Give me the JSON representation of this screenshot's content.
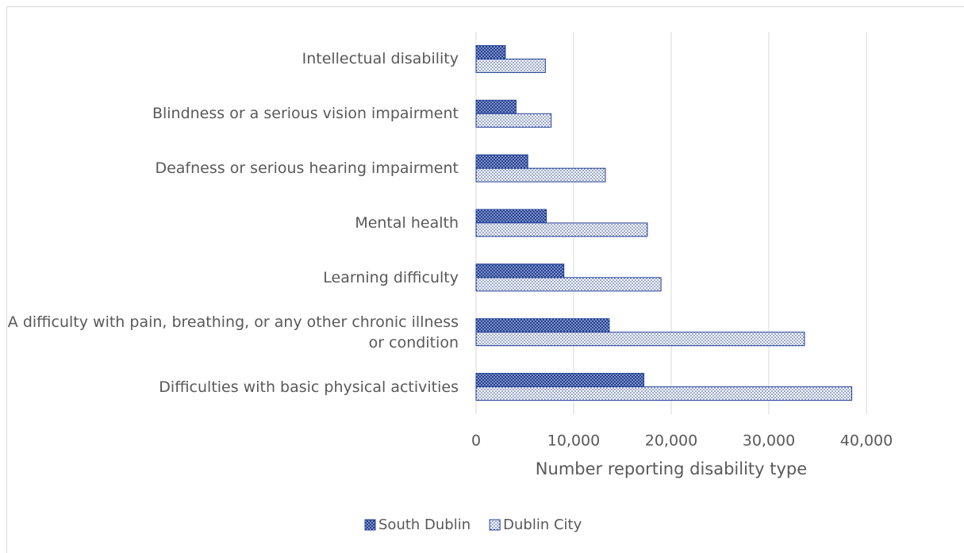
{
  "chart_data": {
    "type": "hbar",
    "categories": [
      "Intellectual disability",
      "Blindness or a serious vision impairment",
      "Deafness or serious hearing impairment",
      "Mental health",
      "Learning difficulty",
      "A difficulty with pain, breathing, or any other chronic illness or condition",
      "Difficulties with basic physical activities"
    ],
    "series": [
      {
        "name": "South Dublin",
        "color": "#1f3d94",
        "values": [
          3000,
          4100,
          5300,
          7200,
          9000,
          13650,
          17200
        ]
      },
      {
        "name": "Dublin City",
        "color": "#1f3d94",
        "values": [
          7100,
          7700,
          13250,
          17550,
          18950,
          33650,
          38500
        ]
      }
    ],
    "xlabel": "Number reporting disability type",
    "xlim": [
      0,
      40000
    ],
    "xticks": [
      0,
      {
        "value": 10000,
        "label": "10,000"
      },
      {
        "value": 20000,
        "label": "20,000"
      },
      {
        "value": 30000,
        "label": "30,000"
      },
      {
        "value": 40000,
        "label": "40,000"
      }
    ],
    "grid": true,
    "legend": "bottom"
  }
}
